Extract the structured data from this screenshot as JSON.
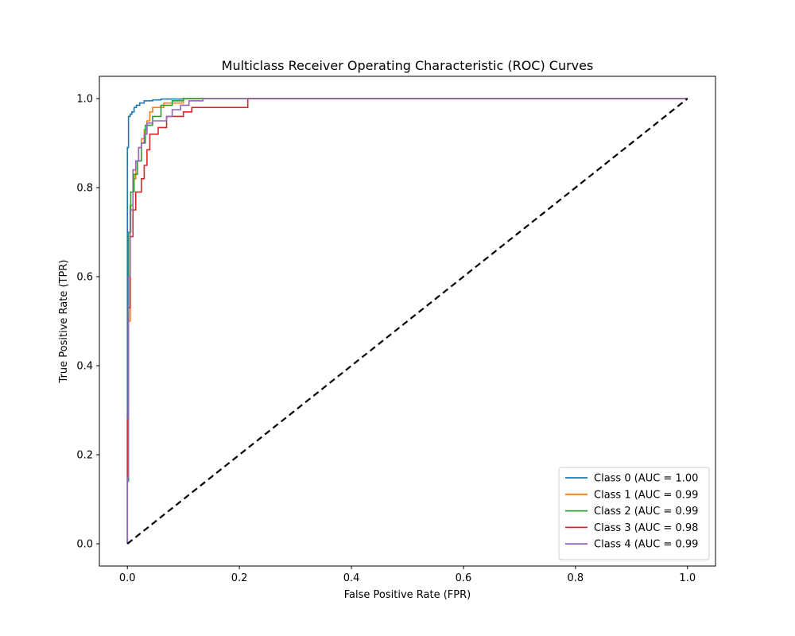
{
  "chart_data": {
    "type": "line",
    "title": "Multiclass Receiver Operating Characteristic (ROC) Curves",
    "xlabel": "False Positive Rate (FPR)",
    "ylabel": "True Positive Rate (TPR)",
    "xlim": [
      -0.05,
      1.05
    ],
    "ylim": [
      -0.05,
      1.05
    ],
    "xticks": [
      "0.0",
      "0.2",
      "0.4",
      "0.6",
      "0.8",
      "1.0"
    ],
    "yticks": [
      "0.0",
      "0.2",
      "0.4",
      "0.6",
      "0.8",
      "1.0"
    ],
    "grid": false,
    "legend_position": "lower-right",
    "series": [
      {
        "name": "Class 0 (AUC = 1.00",
        "color": "#1f77b4",
        "x": [
          0.0,
          0.0,
          0.002,
          0.002,
          0.005,
          0.005,
          0.008,
          0.008,
          0.012,
          0.012,
          0.016,
          0.016,
          0.022,
          0.022,
          0.03,
          0.03,
          0.045,
          0.045,
          0.06,
          0.06,
          0.1,
          0.1,
          1.0
        ],
        "y": [
          0.0,
          0.89,
          0.89,
          0.96,
          0.96,
          0.965,
          0.965,
          0.97,
          0.97,
          0.98,
          0.98,
          0.985,
          0.985,
          0.99,
          0.99,
          0.995,
          0.995,
          0.997,
          0.997,
          0.999,
          0.999,
          1.0,
          1.0
        ]
      },
      {
        "name": "Class 1 (AUC = 0.99",
        "color": "#ff7f0e",
        "x": [
          0.0,
          0.0,
          0.002,
          0.002,
          0.005,
          0.005,
          0.01,
          0.01,
          0.015,
          0.015,
          0.02,
          0.02,
          0.025,
          0.025,
          0.03,
          0.03,
          0.035,
          0.035,
          0.04,
          0.04,
          0.045,
          0.045,
          0.065,
          0.065,
          0.1,
          0.1,
          1.0
        ],
        "y": [
          0.0,
          0.15,
          0.15,
          0.5,
          0.5,
          0.76,
          0.76,
          0.82,
          0.82,
          0.86,
          0.86,
          0.89,
          0.89,
          0.91,
          0.91,
          0.93,
          0.93,
          0.95,
          0.95,
          0.97,
          0.97,
          0.98,
          0.98,
          0.99,
          0.99,
          1.0,
          1.0
        ]
      },
      {
        "name": "Class 2 (AUC = 0.99",
        "color": "#2ca02c",
        "x": [
          0.0,
          0.0,
          0.002,
          0.002,
          0.006,
          0.006,
          0.012,
          0.012,
          0.018,
          0.018,
          0.025,
          0.025,
          0.032,
          0.032,
          0.045,
          0.045,
          0.06,
          0.06,
          0.08,
          0.08,
          0.1,
          0.1,
          1.0
        ],
        "y": [
          0.0,
          0.14,
          0.14,
          0.7,
          0.7,
          0.79,
          0.79,
          0.83,
          0.83,
          0.86,
          0.86,
          0.9,
          0.9,
          0.94,
          0.94,
          0.96,
          0.96,
          0.985,
          0.985,
          0.995,
          0.995,
          1.0,
          1.0
        ]
      },
      {
        "name": "Class 3 (AUC = 0.98",
        "color": "#d62728",
        "x": [
          0.0,
          0.0,
          0.002,
          0.002,
          0.005,
          0.005,
          0.01,
          0.01,
          0.015,
          0.015,
          0.025,
          0.025,
          0.03,
          0.03,
          0.035,
          0.035,
          0.04,
          0.04,
          0.055,
          0.055,
          0.07,
          0.07,
          0.1,
          0.1,
          0.115,
          0.115,
          0.215,
          0.215,
          1.0
        ],
        "y": [
          0.0,
          0.28,
          0.28,
          0.53,
          0.53,
          0.69,
          0.69,
          0.75,
          0.75,
          0.79,
          0.79,
          0.82,
          0.82,
          0.85,
          0.85,
          0.885,
          0.885,
          0.92,
          0.92,
          0.935,
          0.935,
          0.96,
          0.96,
          0.97,
          0.97,
          0.98,
          0.98,
          1.0,
          1.0
        ]
      },
      {
        "name": "Class 4 (AUC = 0.99",
        "color": "#9467bd",
        "x": [
          0.0,
          0.0,
          0.002,
          0.002,
          0.005,
          0.005,
          0.01,
          0.01,
          0.015,
          0.015,
          0.02,
          0.02,
          0.025,
          0.025,
          0.03,
          0.03,
          0.035,
          0.035,
          0.045,
          0.045,
          0.07,
          0.07,
          0.08,
          0.08,
          0.095,
          0.095,
          0.11,
          0.11,
          0.135,
          0.135,
          1.0
        ],
        "y": [
          0.0,
          0.15,
          0.15,
          0.6,
          0.6,
          0.75,
          0.75,
          0.84,
          0.84,
          0.86,
          0.86,
          0.89,
          0.89,
          0.9,
          0.9,
          0.92,
          0.92,
          0.945,
          0.945,
          0.95,
          0.95,
          0.96,
          0.96,
          0.975,
          0.975,
          0.985,
          0.985,
          0.995,
          0.995,
          1.0,
          1.0
        ]
      }
    ],
    "reference_line": {
      "x": [
        0.0,
        1.0
      ],
      "y": [
        0.0,
        1.0
      ],
      "color": "#000000",
      "style": "dashed"
    }
  }
}
